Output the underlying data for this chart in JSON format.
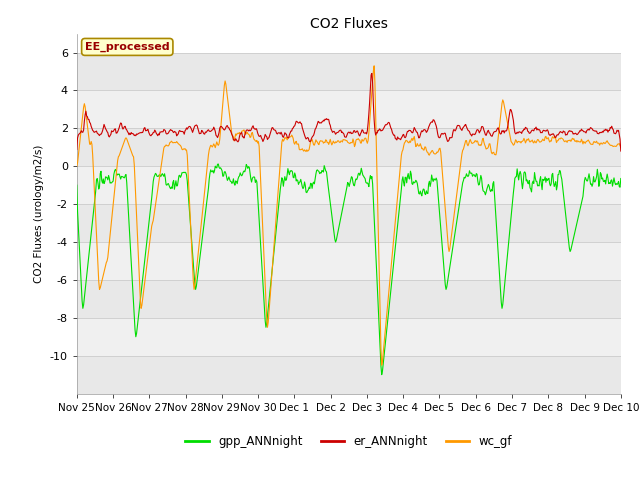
{
  "title": "CO2 Fluxes",
  "ylabel": "CO2 Fluxes (urology/m2/s)",
  "ylim": [
    -12,
    7
  ],
  "yticks": [
    -10,
    -8,
    -6,
    -4,
    -2,
    0,
    2,
    4,
    6
  ],
  "x_labels": [
    "Nov 25",
    "Nov 26",
    "Nov 27",
    "Nov 28",
    "Nov 29",
    "Nov 30",
    "Dec 1",
    "Dec 2",
    "Dec 3",
    "Dec 4",
    "Dec 5",
    "Dec 6",
    "Dec 7",
    "Dec 8",
    "Dec 9",
    "Dec 10"
  ],
  "gpp_color": "#00dd00",
  "er_color": "#cc0000",
  "wc_color": "#ff9900",
  "annotation_text": "EE_processed",
  "annotation_bg": "#ffffcc",
  "annotation_border": "#aa8800",
  "bg_color": "#ffffff",
  "line_width": 0.8,
  "n_points": 720
}
